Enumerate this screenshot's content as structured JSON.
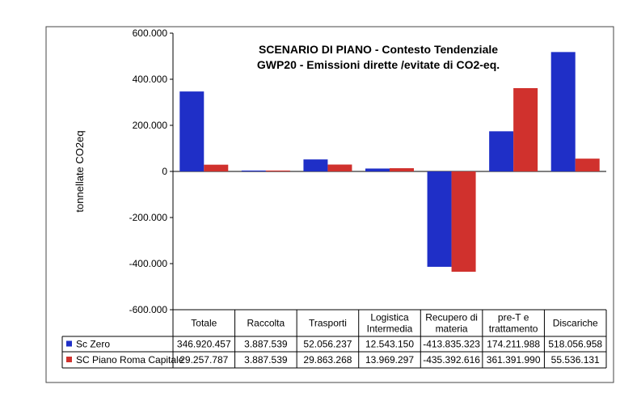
{
  "chart_data": {
    "type": "bar",
    "title": [
      "SCENARIO DI PIANO  - Contesto Tendenziale",
      "GWP20 - Emissioni dirette /evitate di CO2-eq."
    ],
    "ylabel": "tonnellate CO2eq",
    "ylim": [
      -600000,
      600000
    ],
    "yticks": [
      600000,
      400000,
      200000,
      0,
      -200000,
      -400000,
      -600000
    ],
    "ytick_labels": [
      "600.000",
      "400.000",
      "200.000",
      "0",
      "-200.000",
      "-400.000",
      "-600.000"
    ],
    "categories": [
      [
        "Totale"
      ],
      [
        "Raccolta"
      ],
      [
        "Trasporti"
      ],
      [
        "Logistica",
        "Intermedia"
      ],
      [
        "Recupero di",
        "materia"
      ],
      [
        "pre-T e",
        "trattamento"
      ],
      [
        "Discariche"
      ]
    ],
    "series": [
      {
        "name": "Sc Zero",
        "color": "#1f2fc7",
        "values": [
          346920.457,
          3887.539,
          52056.237,
          12543.15,
          -413835.323,
          174211.988,
          518056.958
        ],
        "labels": [
          "346.920.457",
          "3.887.539",
          "52.056.237",
          "12.543.150",
          "-413.835.323",
          "174.211.988",
          "518.056.958"
        ]
      },
      {
        "name": "SC Piano Roma Capitale",
        "color": "#d0312d",
        "values": [
          29257.787,
          3887.539,
          29863.268,
          13969.297,
          -435392.616,
          361391.99,
          55536.131
        ],
        "labels": [
          "29.257.787",
          "3.887.539",
          "29.863.268",
          "13.969.297",
          "-435.392.616",
          "361.391.990",
          "55.536.131"
        ]
      }
    ],
    "grid": false,
    "legend": "data-table"
  }
}
